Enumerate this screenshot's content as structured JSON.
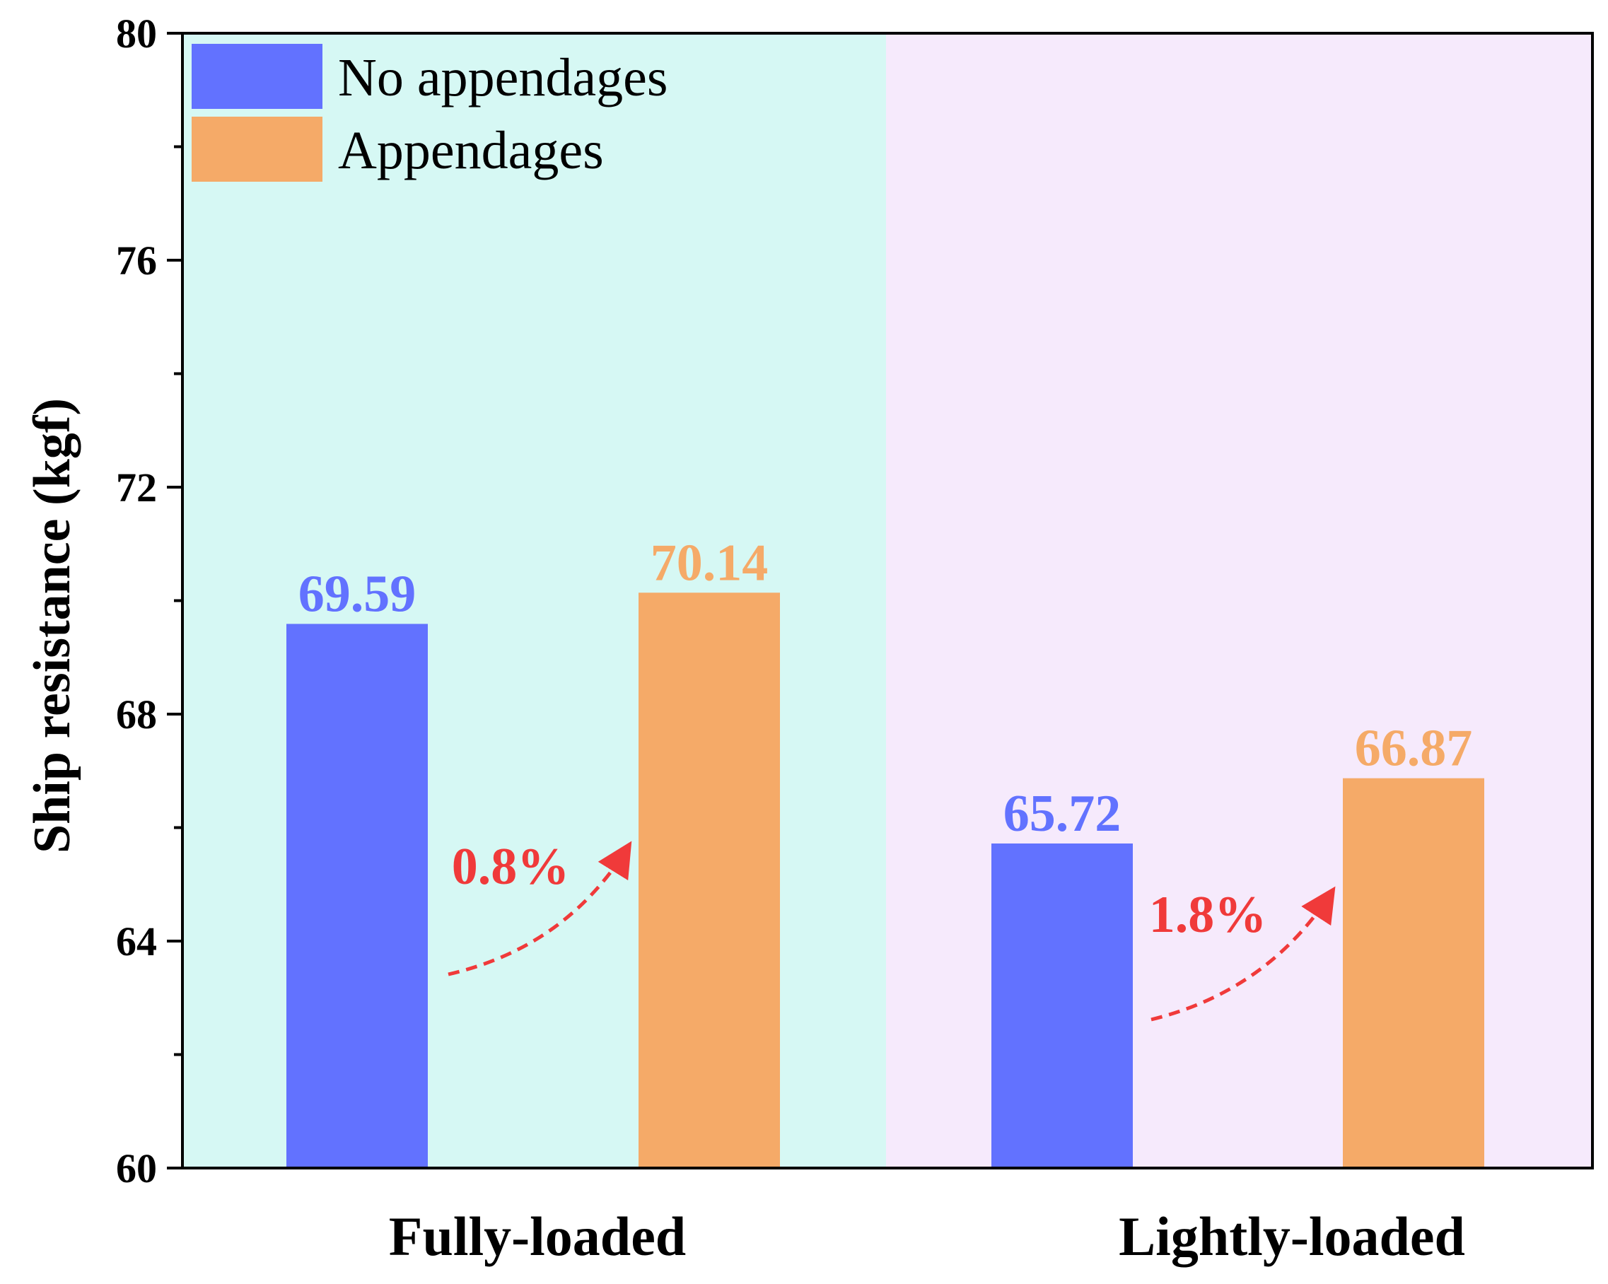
{
  "chart_data": {
    "type": "bar",
    "categories": [
      "Fully-loaded",
      "Lightly-loaded"
    ],
    "series": [
      {
        "name": "No appendages",
        "values": [
          69.59,
          65.72
        ],
        "color": "#6272FF",
        "value_labels": [
          "69.59",
          "65.72"
        ]
      },
      {
        "name": "Appendages",
        "values": [
          70.14,
          66.87
        ],
        "color": "#F5AA68",
        "value_labels": [
          "70.14",
          "66.87"
        ]
      }
    ],
    "ylabel": "Ship resistance (kgf)",
    "xlabel": "",
    "ylim": [
      60,
      80
    ],
    "yticks": [
      60,
      64,
      68,
      72,
      76,
      80
    ],
    "ytick_labels": [
      "60",
      "64",
      "68",
      "72",
      "76",
      "80"
    ],
    "minor_ytick_step": 2,
    "legend_position": "top-left",
    "region_colors": [
      "#D6F8F4",
      "#F6EAFC"
    ],
    "annotations": [
      {
        "category": "Fully-loaded",
        "text": "0.8%",
        "color": "#F03A3A"
      },
      {
        "category": "Lightly-loaded",
        "text": "1.8%",
        "color": "#F03A3A"
      }
    ],
    "grid": false
  }
}
